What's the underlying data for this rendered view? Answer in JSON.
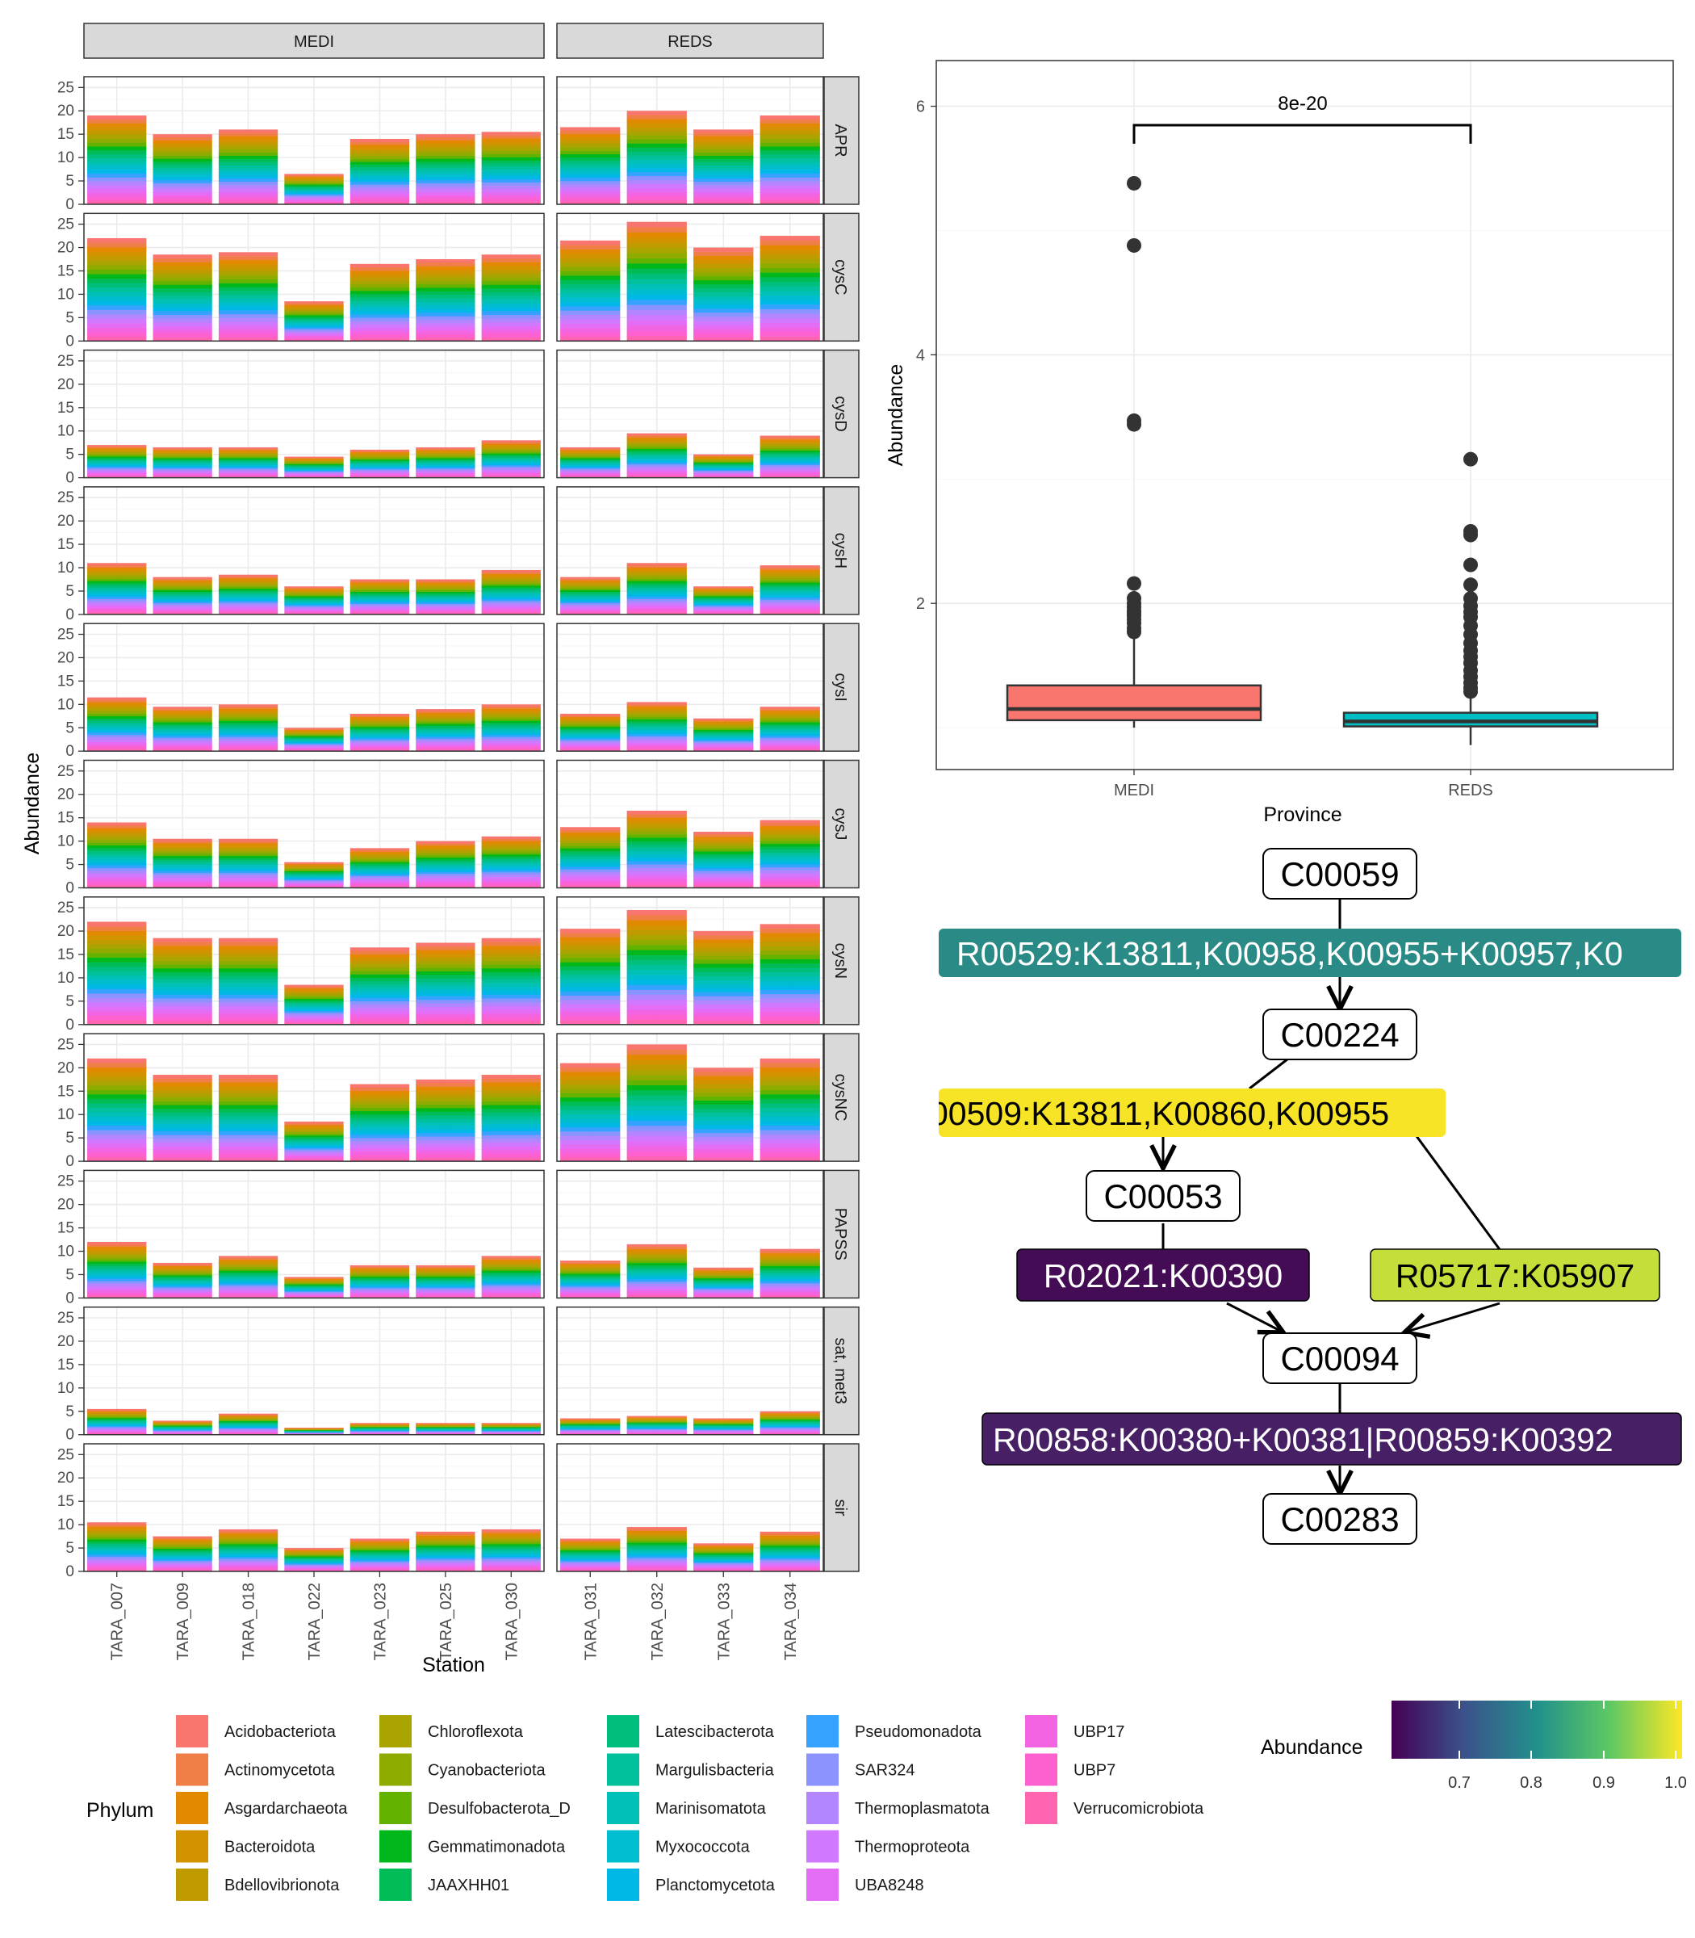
{
  "chart_data": [
    {
      "type": "bar",
      "subtype": "stacked-faceted",
      "facet_cols": [
        "MEDI",
        "REDS"
      ],
      "facet_rows": [
        "APR",
        "cysC",
        "cysD",
        "cysH",
        "cysI",
        "cysJ",
        "cysN",
        "cysNC",
        "PAPSS",
        "sat, met3",
        "sir"
      ],
      "stations": {
        "MEDI": [
          "TARA_007",
          "TARA_009",
          "TARA_018",
          "TARA_022",
          "TARA_023",
          "TARA_025",
          "TARA_030"
        ],
        "REDS": [
          "TARA_031",
          "TARA_032",
          "TARA_033",
          "TARA_034"
        ]
      },
      "totals": {
        "APR": {
          "MEDI": [
            19,
            15,
            16,
            6.5,
            14,
            15,
            15.5
          ],
          "REDS": [
            16.5,
            20,
            16,
            19
          ]
        },
        "cysC": {
          "MEDI": [
            22,
            18.5,
            19,
            8.5,
            16.5,
            17.5,
            18.5
          ],
          "REDS": [
            21.5,
            25.5,
            20,
            22.5
          ]
        },
        "cysD": {
          "MEDI": [
            7,
            6.5,
            6.5,
            4.5,
            6,
            6.5,
            8
          ],
          "REDS": [
            6.5,
            9.5,
            5,
            9
          ]
        },
        "cysH": {
          "MEDI": [
            11,
            8,
            8.5,
            6,
            7.5,
            7.5,
            9.5
          ],
          "REDS": [
            8,
            11,
            6,
            10.5
          ]
        },
        "cysI": {
          "MEDI": [
            11.5,
            9.5,
            10,
            5,
            8,
            9,
            10
          ],
          "REDS": [
            8,
            10.5,
            7,
            9.5
          ]
        },
        "cysJ": {
          "MEDI": [
            14,
            10.5,
            10.5,
            5.5,
            8.5,
            10,
            11
          ],
          "REDS": [
            13,
            16.5,
            12,
            14.5
          ]
        },
        "cysN": {
          "MEDI": [
            22,
            18.5,
            18.5,
            8.5,
            16.5,
            17.5,
            18.5
          ],
          "REDS": [
            20.5,
            24.5,
            20,
            21.5
          ]
        },
        "cysNC": {
          "MEDI": [
            22,
            18.5,
            18.5,
            8.5,
            16.5,
            17.5,
            18.5
          ],
          "REDS": [
            21,
            25,
            20,
            22
          ]
        },
        "PAPSS": {
          "MEDI": [
            12,
            7.5,
            9,
            4.5,
            7,
            7,
            9
          ],
          "REDS": [
            8,
            11.5,
            6.5,
            10.5
          ]
        },
        "sat, met3": {
          "MEDI": [
            5.5,
            3,
            4.5,
            1.5,
            2.5,
            2.5,
            2.5
          ],
          "REDS": [
            3.5,
            4,
            3.5,
            5
          ]
        },
        "sir": {
          "MEDI": [
            10.5,
            7.5,
            9,
            5,
            7,
            8.5,
            9
          ],
          "REDS": [
            7,
            9.5,
            6,
            8.5
          ]
        }
      },
      "ylim": [
        0,
        25
      ],
      "yticks": [
        0,
        5,
        10,
        15,
        20,
        25
      ],
      "xlabel": "Station",
      "ylabel": "Abundance",
      "legend_title": "Phylum",
      "phyla": [
        {
          "name": "Acidobacteriota",
          "color": "#F8766D"
        },
        {
          "name": "Actinomycetota",
          "color": "#EF7F46"
        },
        {
          "name": "Asgardarchaeota",
          "color": "#E38900"
        },
        {
          "name": "Bacteroidota",
          "color": "#D39200"
        },
        {
          "name": "Bdellovibrionota",
          "color": "#C09B00"
        },
        {
          "name": "Chloroflexota",
          "color": "#A9A400"
        },
        {
          "name": "Cyanobacteriota",
          "color": "#8EAB00"
        },
        {
          "name": "Desulfobacterota_D",
          "color": "#64B200"
        },
        {
          "name": "Gemmatimonadota",
          "color": "#00B81B"
        },
        {
          "name": "JAAXHH01",
          "color": "#00BC56"
        },
        {
          "name": "Latescibacterota",
          "color": "#00BF7D"
        },
        {
          "name": "Margulisbacteria",
          "color": "#00C19C"
        },
        {
          "name": "Marinisomatota",
          "color": "#00C0B8"
        },
        {
          "name": "Myxococcota",
          "color": "#00BDD0"
        },
        {
          "name": "Planctomycetota",
          "color": "#00B8E5"
        },
        {
          "name": "Pseudomonadota",
          "color": "#35A2FF"
        },
        {
          "name": "SAR324",
          "color": "#8B93FF"
        },
        {
          "name": "Thermoplasmatota",
          "color": "#B385FF"
        },
        {
          "name": "Thermoproteota",
          "color": "#D078FF"
        },
        {
          "name": "UBA8248",
          "color": "#E46DF6"
        },
        {
          "name": "UBP17",
          "color": "#F264E2"
        },
        {
          "name": "UBP7",
          "color": "#FC61CF"
        },
        {
          "name": "Verrucomicrobiota",
          "color": "#FF64B0"
        }
      ],
      "legend_placement": "bottom",
      "grid": true
    },
    {
      "type": "boxplot",
      "categories": [
        "MEDI",
        "REDS"
      ],
      "xlabel": "Province",
      "ylabel": "Abundance",
      "yticks": [
        2,
        4,
        6
      ],
      "ylim": [
        0.65,
        6.4
      ],
      "boxes": [
        {
          "name": "MEDI",
          "color": "#F8766D",
          "q1": 1.06,
          "median": 1.15,
          "q3": 1.34,
          "whisker_low": 1.0,
          "whisker_high": 1.73,
          "outliers": [
            5.38,
            4.88,
            3.47,
            3.44,
            2.16,
            2.04,
            2.0,
            1.97,
            1.94,
            1.92,
            1.9,
            1.87,
            1.84,
            1.8,
            1.77
          ]
        },
        {
          "name": "REDS",
          "color": "#00BFC4",
          "q1": 1.01,
          "median": 1.05,
          "q3": 1.12,
          "whisker_low": 0.86,
          "whisker_high": 1.27,
          "outliers": [
            3.16,
            2.58,
            2.55,
            2.31,
            2.15,
            2.04,
            1.98,
            1.93,
            1.89,
            1.82,
            1.75,
            1.68,
            1.62,
            1.57,
            1.52,
            1.46,
            1.41,
            1.36,
            1.32,
            1.29
          ]
        }
      ],
      "annotation": "8e-20",
      "grid": true
    },
    {
      "type": "diagram",
      "nodes": [
        "C00059",
        "C00224",
        "C00053",
        "C00094",
        "C00283"
      ],
      "reactions": [
        {
          "label": "R00529:K13811,K00958,K00955+K00957,K0",
          "color": "#2A8A85",
          "text_color": "#FFFFFF"
        },
        {
          "label": "00509:K13811,K00860,K00955",
          "color": "#F7E427",
          "text_color": "#000000"
        },
        {
          "label": "R02021:K00390",
          "color": "#430C55",
          "text_color": "#FFFFFF"
        },
        {
          "label": "R05717:K05907",
          "color": "#C5DE3A",
          "text_color": "#000000"
        },
        {
          "label": "R00858:K00380+K00381|R00859:K00392",
          "color": "#471F65",
          "text_color": "#FFFFFF"
        }
      ],
      "colorbar": {
        "title": "Abundance",
        "ticks": [
          "0.7",
          "0.8",
          "0.9",
          "1.0"
        ],
        "stops": [
          "#440154",
          "#3B528B",
          "#21908C",
          "#5DC863",
          "#FDE725"
        ]
      }
    }
  ]
}
